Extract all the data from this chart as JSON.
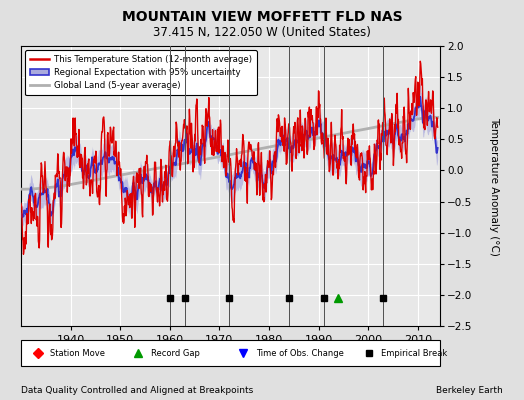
{
  "title": "MOUNTAIN VIEW MOFFETT FLD NAS",
  "subtitle": "37.415 N, 122.050 W (United States)",
  "ylabel": "Temperature Anomaly (°C)",
  "xlabel_note": "Data Quality Controlled and Aligned at Breakpoints",
  "credit": "Berkeley Earth",
  "ylim": [
    -2.5,
    2.0
  ],
  "xlim": [
    1930,
    2014.5
  ],
  "yticks": [
    -2.5,
    -2,
    -1.5,
    -1,
    -0.5,
    0,
    0.5,
    1,
    1.5,
    2
  ],
  "xticks": [
    1940,
    1950,
    1960,
    1970,
    1980,
    1990,
    2000,
    2010
  ],
  "bg_color": "#e0e0e0",
  "plot_bg": "#e8e8e8",
  "station_color": "#dd0000",
  "regional_color": "#3333cc",
  "uncertainty_color": "#aaaadd",
  "global_color": "#b0b0b0",
  "empirical_break_x": [
    1960,
    1963,
    1972,
    1984,
    1991,
    2003
  ],
  "record_gap_x": [
    1994
  ],
  "legend_labels": [
    "This Temperature Station (12-month average)",
    "Regional Expectation with 95% uncertainty",
    "Global Land (5-year average)"
  ],
  "bottom_legend": "◆ Station Move    ▲ Record Gap    ▼ Time of Obs. Change    ■ Empirical Break"
}
